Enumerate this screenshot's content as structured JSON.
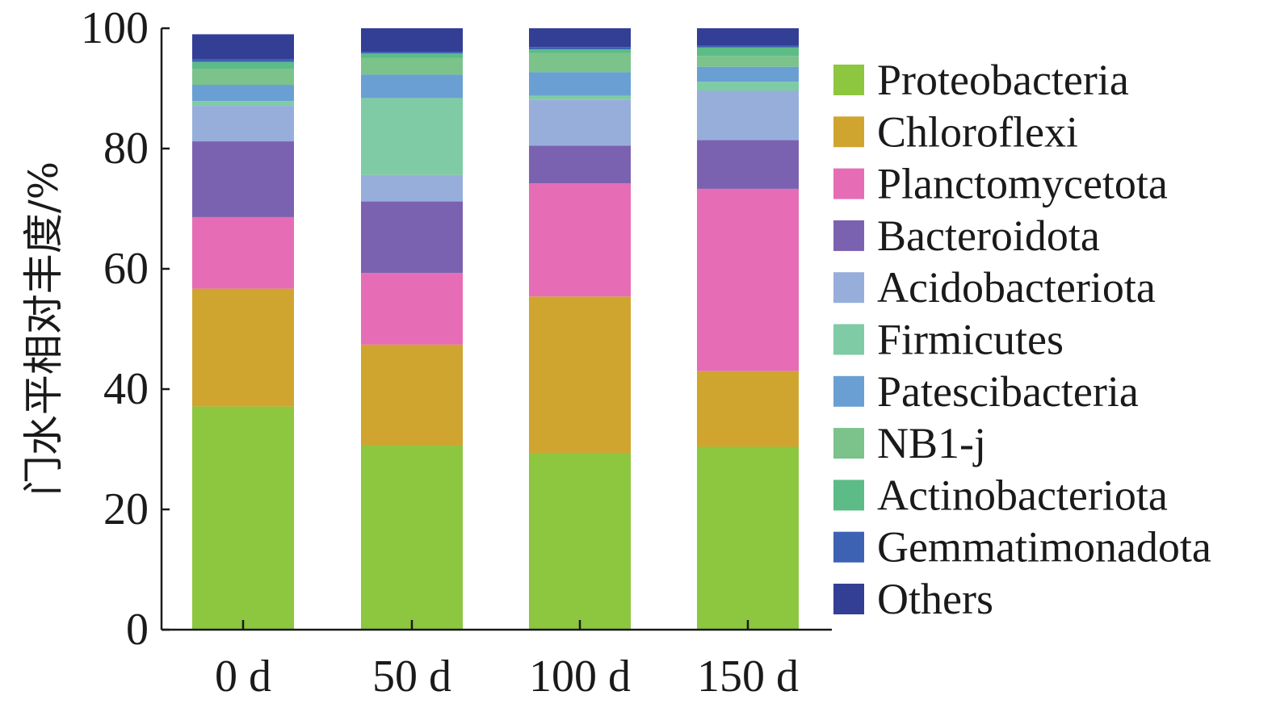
{
  "chart_data": {
    "type": "bar",
    "stacked": true,
    "title": "",
    "xlabel": "",
    "ylabel": "门水平相对丰度/%",
    "ylim": [
      0,
      100
    ],
    "yticks": [
      0,
      20,
      40,
      60,
      80,
      100
    ],
    "grid": false,
    "legend_position": "right",
    "categories": [
      "0 d",
      "50 d",
      "100 d",
      "150 d"
    ],
    "series": [
      {
        "name": "Proteobacteria",
        "color": "#8dc63f",
        "values": [
          37.1,
          30.6,
          29.4,
          30.4
        ]
      },
      {
        "name": "Chloroflexi",
        "color": "#cfa530",
        "values": [
          19.6,
          16.8,
          26.0,
          12.6
        ]
      },
      {
        "name": "Planctomycetota",
        "color": "#e66db5",
        "values": [
          11.9,
          11.9,
          18.8,
          30.3
        ]
      },
      {
        "name": "Bacteroidota",
        "color": "#7b62b0",
        "values": [
          12.6,
          11.9,
          6.3,
          8.1
        ]
      },
      {
        "name": "Acidobacteriota",
        "color": "#97aedb",
        "values": [
          5.9,
          4.4,
          7.6,
          8.2
        ]
      },
      {
        "name": "Firmicutes",
        "color": "#7fcba5",
        "values": [
          0.8,
          12.8,
          0.7,
          1.5
        ]
      },
      {
        "name": "Patescibacteria",
        "color": "#6a9fd3",
        "values": [
          2.7,
          3.9,
          3.9,
          2.5
        ]
      },
      {
        "name": "NB1-j",
        "color": "#7bc38a",
        "values": [
          2.6,
          2.8,
          3.2,
          1.8
        ]
      },
      {
        "name": "Actinobacteriota",
        "color": "#5cbb87",
        "values": [
          1.2,
          0.7,
          0.6,
          1.4
        ]
      },
      {
        "name": "Gemmatimonadota",
        "color": "#3e62b3",
        "values": [
          0.5,
          0.3,
          0.4,
          0.3
        ]
      },
      {
        "name": "Others",
        "color": "#333e95",
        "values": [
          4.1,
          3.9,
          3.1,
          2.9
        ]
      }
    ]
  }
}
